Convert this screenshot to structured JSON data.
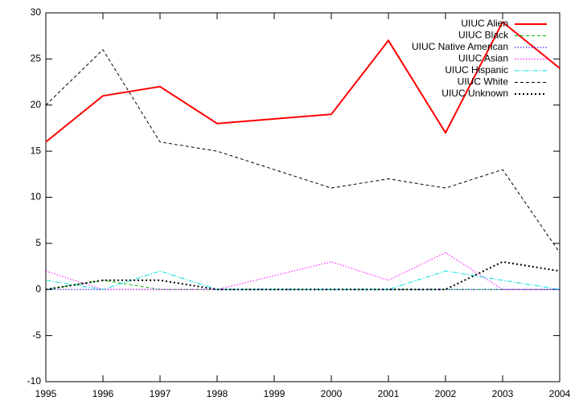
{
  "chart_data": {
    "type": "line",
    "x": [
      1995,
      1996,
      1997,
      1998,
      2000,
      2001,
      2002,
      2003,
      2004
    ],
    "series": [
      {
        "name": "UIUC Alien",
        "color": "#ff0000",
        "style": "solid",
        "values": [
          16,
          21,
          22,
          18,
          19,
          27,
          17,
          29,
          24
        ]
      },
      {
        "name": "UIUC Black",
        "color": "#00c000",
        "style": "dashed",
        "values": [
          0,
          1,
          0,
          0,
          0,
          0,
          0,
          0,
          0
        ]
      },
      {
        "name": "UIUC Native American",
        "color": "#0000ff",
        "style": "dotted",
        "values": [
          0,
          0,
          0,
          0,
          0,
          0,
          0,
          0,
          0
        ]
      },
      {
        "name": "UIUC Asian",
        "color": "#ff00ff",
        "style": "dotted",
        "values": [
          2,
          0,
          0,
          0,
          3,
          1,
          4,
          0,
          0
        ]
      },
      {
        "name": "UIUC Hispanic",
        "color": "#00e0e0",
        "style": "dashdot",
        "values": [
          1,
          0,
          2,
          0,
          0,
          0,
          2,
          1,
          0
        ]
      },
      {
        "name": "UIUC White",
        "color": "#000000",
        "style": "dashed",
        "values": [
          20,
          26,
          16,
          15,
          11,
          12,
          11,
          13,
          4
        ]
      },
      {
        "name": "UIUC Unknown",
        "color": "#000000",
        "style": "dotted-bold",
        "values": [
          0,
          1,
          1,
          0,
          0,
          0,
          0,
          3,
          2
        ]
      }
    ],
    "xlim": [
      1995,
      2004
    ],
    "xticks": [
      1995,
      1996,
      1997,
      1998,
      1999,
      2000,
      2001,
      2002,
      2003,
      2004
    ],
    "ylim": [
      -10,
      30
    ],
    "yticks": [
      -10,
      -5,
      0,
      5,
      10,
      15,
      20,
      25,
      30
    ],
    "legend": "top-right"
  }
}
